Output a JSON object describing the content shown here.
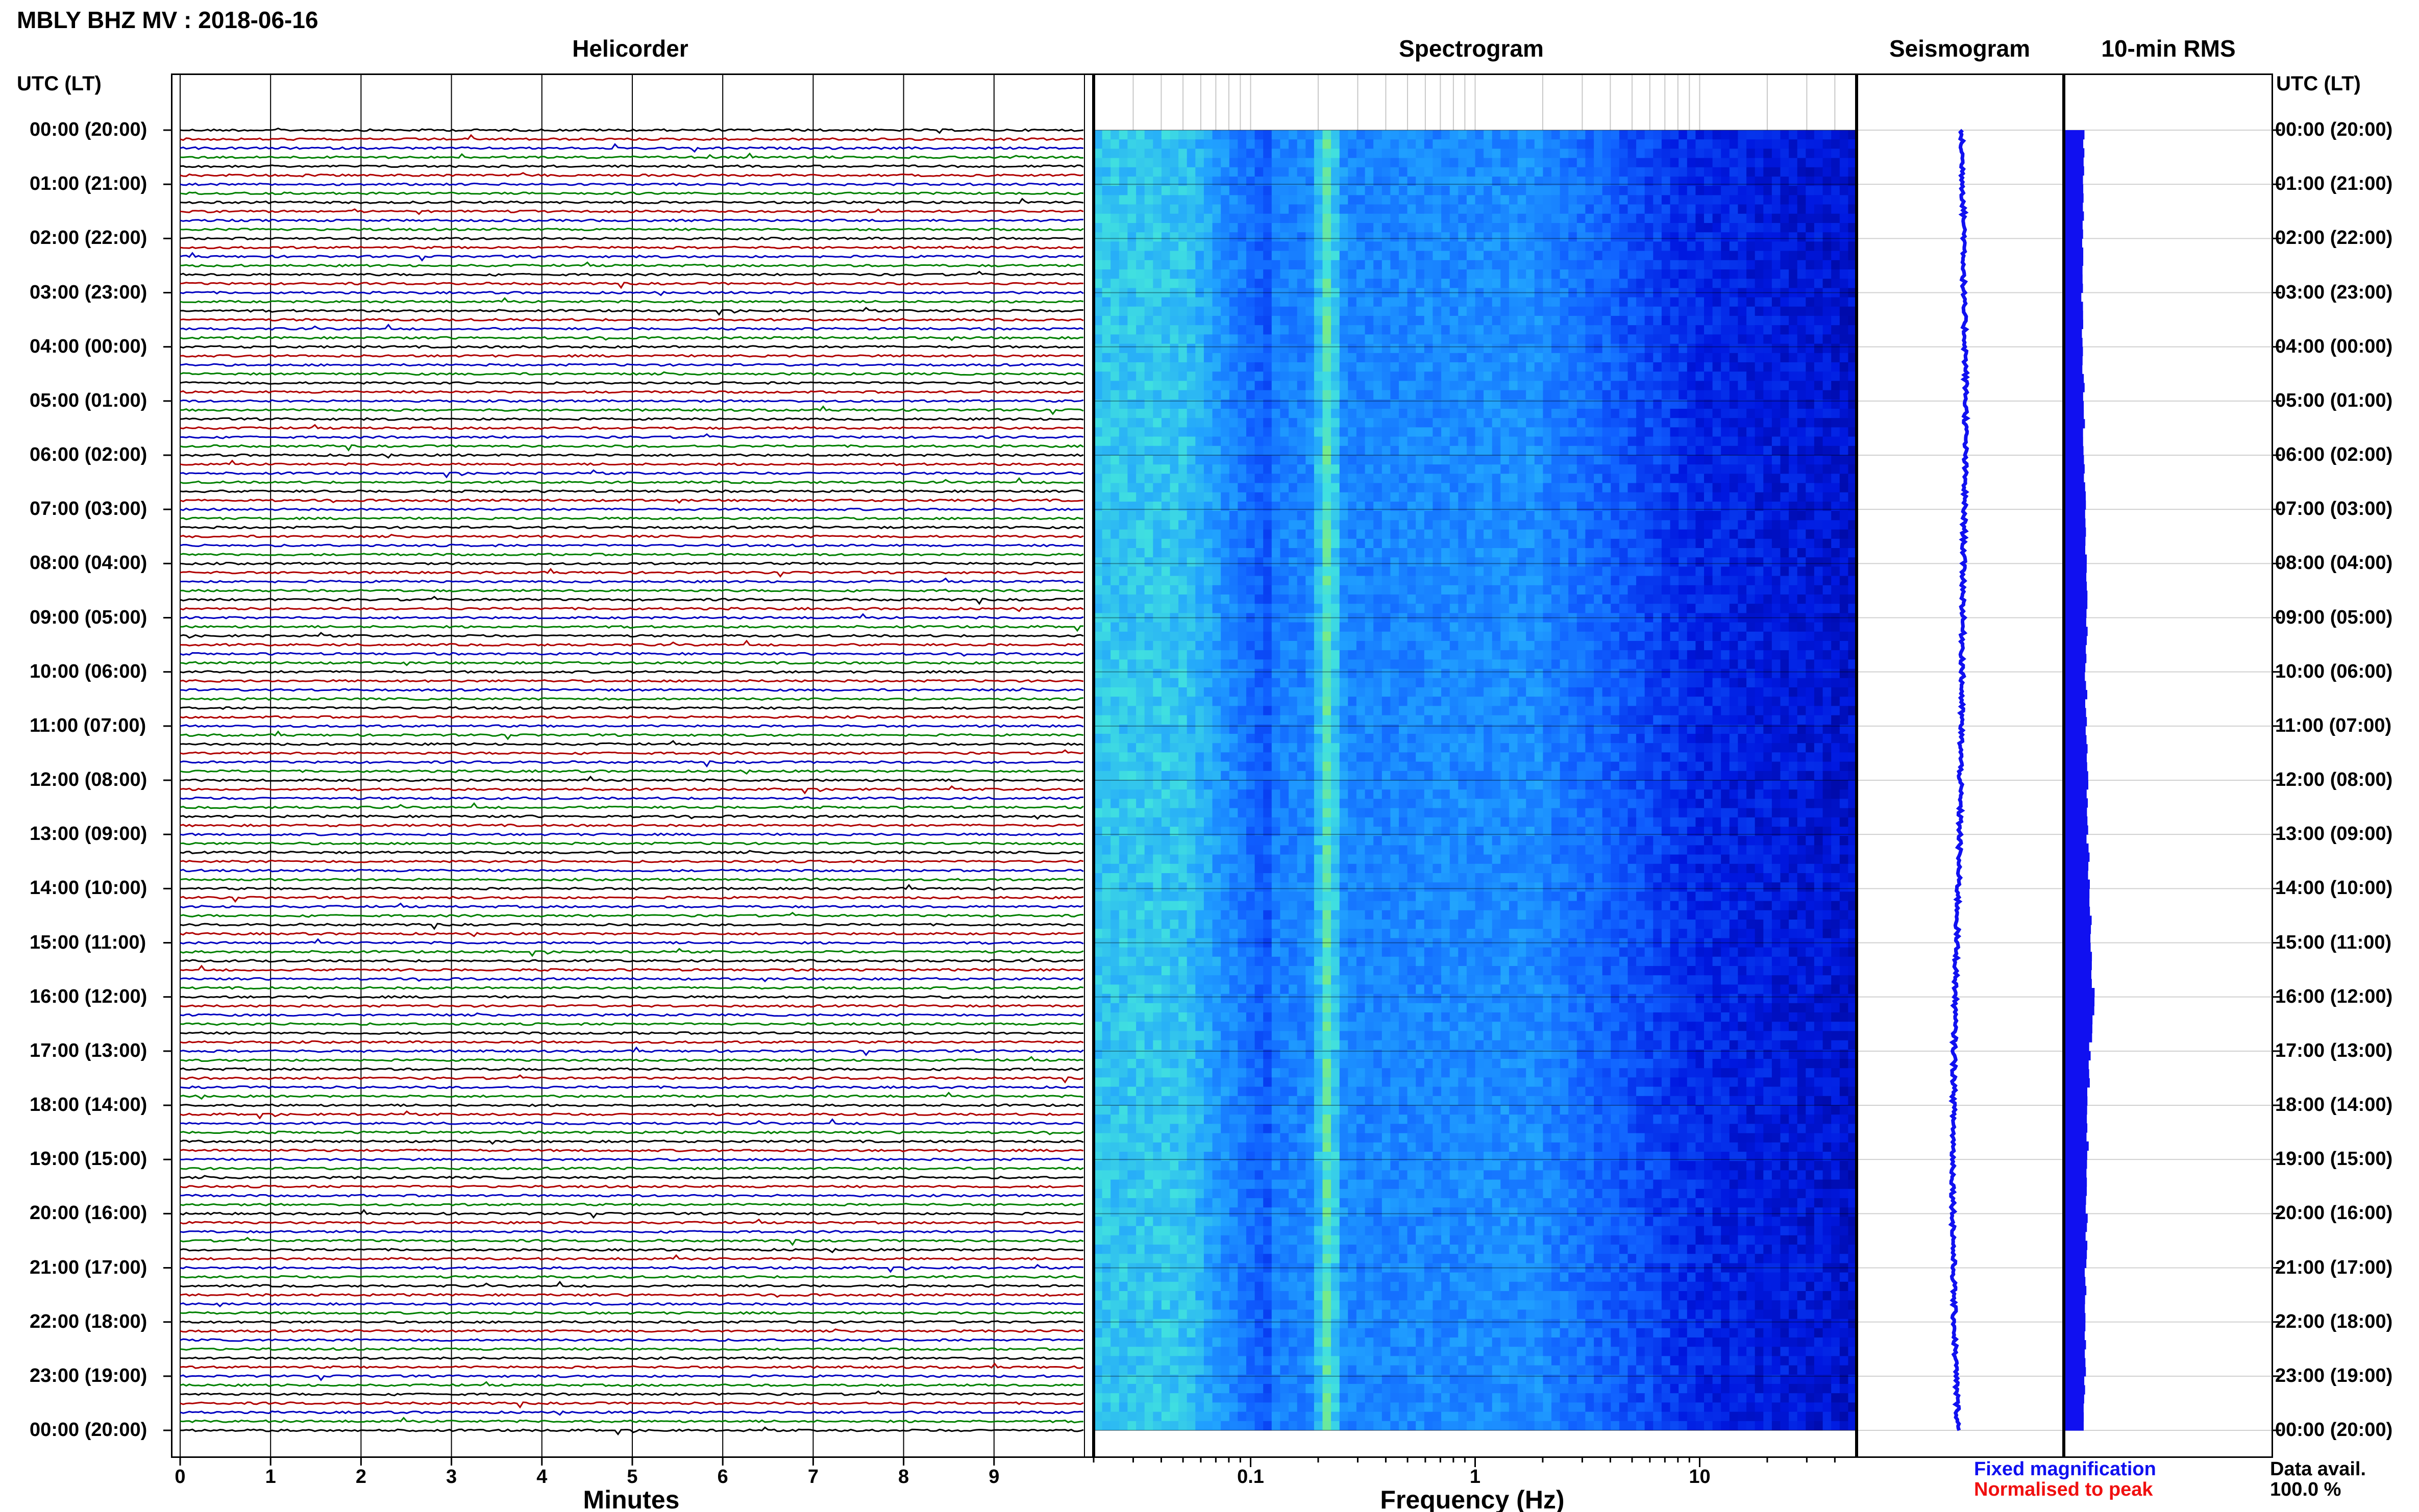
{
  "header": {
    "title": "MBLY BHZ MV : 2018-06-16"
  },
  "panels": {
    "helicorder": "Helicorder",
    "spectrogram": "Spectrogram",
    "seismogram": "Seismogram",
    "rms": "10-min RMS"
  },
  "axes": {
    "time_header": "UTC (LT)",
    "minutes_label": "Minutes",
    "frequency_label": "Frequency (Hz)"
  },
  "legend": {
    "fixed": "Fixed magnification",
    "normalised": "Normalised to peak",
    "colors": {
      "fixed": "#1010f0",
      "normalised": "#f01010"
    }
  },
  "availability": {
    "label": "Data avail.",
    "value": "100.0 %"
  },
  "chart_data": {
    "type": "heatmap",
    "title": "MBLY BHZ MV : 2018-06-16",
    "time_labels": [
      "00:00 (20:00)",
      "01:00 (21:00)",
      "02:00 (22:00)",
      "03:00 (23:00)",
      "04:00 (00:00)",
      "05:00 (01:00)",
      "06:00 (02:00)",
      "07:00 (03:00)",
      "08:00 (04:00)",
      "09:00 (05:00)",
      "10:00 (06:00)",
      "11:00 (07:00)",
      "12:00 (08:00)",
      "13:00 (09:00)",
      "14:00 (10:00)",
      "15:00 (11:00)",
      "16:00 (12:00)",
      "17:00 (13:00)",
      "18:00 (14:00)",
      "19:00 (15:00)",
      "20:00 (16:00)",
      "21:00 (17:00)",
      "22:00 (18:00)",
      "23:00 (19:00)",
      "00:00 (20:00)"
    ],
    "helicorder": {
      "x_ticks": [
        "0",
        "1",
        "2",
        "3",
        "4",
        "5",
        "6",
        "7",
        "8",
        "9"
      ],
      "xlim": [
        0,
        10
      ],
      "xlabel": "Minutes",
      "trace_colors": [
        "#000000",
        "#b00000",
        "#0000c0",
        "#008000"
      ],
      "traces_per_hour": 6
    },
    "spectrogram": {
      "x_scale": "log",
      "xlim": [
        0.02,
        50
      ],
      "x_ticks": [
        "0.1",
        "1",
        "10"
      ],
      "xlabel": "Frequency (Hz)",
      "microseism_peak_hz": 0.22,
      "colormap": [
        "#000080",
        "#0018e0",
        "#1060ff",
        "#20a0ff",
        "#40e0e0",
        "#90f060"
      ]
    },
    "seismogram": {
      "color": "#1010f0",
      "offsets": [
        0.05,
        0.1,
        0.15,
        0.12,
        0.18,
        0.2,
        0.18,
        0.15,
        0.12,
        0.1,
        0.08,
        0.05,
        0.02,
        0.0,
        -0.05,
        -0.1,
        -0.15,
        -0.18,
        -0.2,
        -0.22,
        -0.22,
        -0.2,
        -0.18,
        -0.12,
        -0.05
      ]
    },
    "rms_10min": {
      "color": "#1010f0",
      "units": "relative",
      "values": [
        0.55,
        0.55,
        0.5,
        0.5,
        0.52,
        0.55,
        0.55,
        0.6,
        0.6,
        0.62,
        0.6,
        0.62,
        0.65,
        0.65,
        0.7,
        0.75,
        0.85,
        0.7,
        0.65,
        0.65,
        0.62,
        0.6,
        0.6,
        0.58,
        0.55
      ]
    }
  }
}
